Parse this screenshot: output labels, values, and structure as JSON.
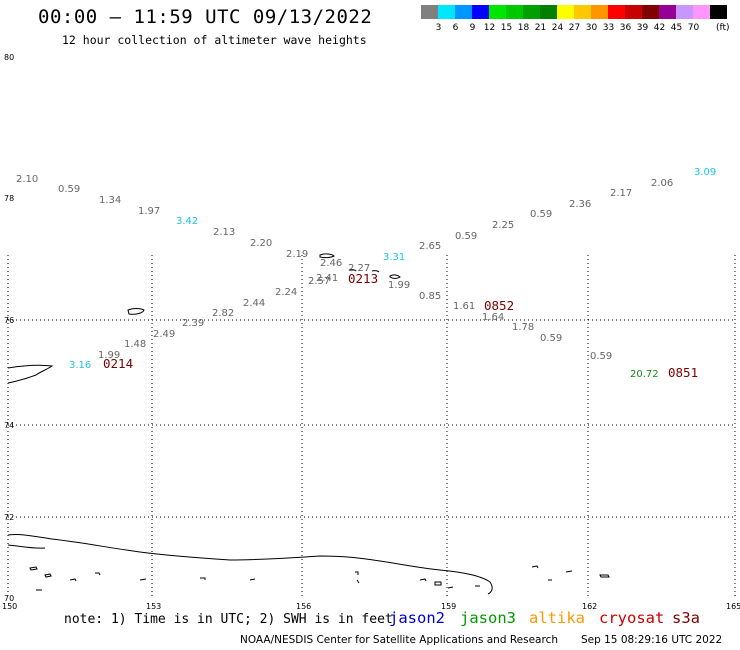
{
  "header": {
    "title": "00:00 – 11:59 UTC 09/13/2022",
    "subtitle": "12 hour collection of altimeter wave heights"
  },
  "color_scale": {
    "unit": "(ft)",
    "bins": [
      {
        "label": "",
        "color": "#808080"
      },
      {
        "label": "3",
        "color": "#00e6ff"
      },
      {
        "label": "6",
        "color": "#0096ff"
      },
      {
        "label": "9",
        "color": "#0000ff"
      },
      {
        "label": "12",
        "color": "#00e600"
      },
      {
        "label": "15",
        "color": "#00c800"
      },
      {
        "label": "18",
        "color": "#00a000"
      },
      {
        "label": "21",
        "color": "#008000"
      },
      {
        "label": "24",
        "color": "#ffff00"
      },
      {
        "label": "27",
        "color": "#ffc800"
      },
      {
        "label": "30",
        "color": "#ff9600"
      },
      {
        "label": "33",
        "color": "#ff0000"
      },
      {
        "label": "36",
        "color": "#c80000"
      },
      {
        "label": "39",
        "color": "#800000"
      },
      {
        "label": "42",
        "color": "#960096"
      },
      {
        "label": "45",
        "color": "#c896ff"
      },
      {
        "label": "70",
        "color": "#ff96ff"
      },
      {
        "label": "",
        "color": "#000000"
      }
    ]
  },
  "axes": {
    "lat_labels": [
      "80",
      "78",
      "76",
      "74",
      "72",
      "70"
    ],
    "lon_labels": [
      "150",
      "153",
      "156",
      "159",
      "162",
      "165"
    ]
  },
  "wave_heights": [
    {
      "value": "2.10",
      "color": "gray"
    },
    {
      "value": "0.59",
      "color": "gray"
    },
    {
      "value": "1.34",
      "color": "gray"
    },
    {
      "value": "1.97",
      "color": "gray"
    },
    {
      "value": "3.42",
      "color": "cyan"
    },
    {
      "value": "2.13",
      "color": "gray"
    },
    {
      "value": "2.20",
      "color": "gray"
    },
    {
      "value": "2.19",
      "color": "gray"
    },
    {
      "value": "2.46",
      "color": "gray"
    },
    {
      "value": "2.27",
      "color": "gray"
    },
    {
      "value": "3.31",
      "color": "cyan"
    },
    {
      "value": "2.65",
      "color": "gray"
    },
    {
      "value": "0.59",
      "color": "gray"
    },
    {
      "value": "2.25",
      "color": "gray"
    },
    {
      "value": "0.59",
      "color": "gray"
    },
    {
      "value": "2.36",
      "color": "gray"
    },
    {
      "value": "2.17",
      "color": "gray"
    },
    {
      "value": "2.06",
      "color": "gray"
    },
    {
      "value": "3.09",
      "color": "cyan"
    },
    {
      "value": "2.41",
      "color": "gray"
    },
    {
      "value": "2.57",
      "color": "gray"
    },
    {
      "value": "1.99",
      "color": "gray"
    },
    {
      "value": "2.24",
      "color": "gray"
    },
    {
      "value": "0.85",
      "color": "gray"
    },
    {
      "value": "2.44",
      "color": "gray"
    },
    {
      "value": "1.61",
      "color": "gray"
    },
    {
      "value": "1.64",
      "color": "gray"
    },
    {
      "value": "2.82",
      "color": "gray"
    },
    {
      "value": "1.78",
      "color": "gray"
    },
    {
      "value": "2.39",
      "color": "gray"
    },
    {
      "value": "2.49",
      "color": "gray"
    },
    {
      "value": "0.59",
      "color": "gray"
    },
    {
      "value": "1.48",
      "color": "gray"
    },
    {
      "value": "1.99",
      "color": "gray"
    },
    {
      "value": "3.16",
      "color": "cyan"
    },
    {
      "value": "0.59",
      "color": "gray"
    },
    {
      "value": "20.72",
      "color": "green"
    }
  ],
  "pass_times": [
    "0213",
    "0214",
    "0852",
    "0851"
  ],
  "footer": {
    "note": "note: 1) Time is in UTC; 2) SWH is in feet",
    "satellites": [
      {
        "name": "jason2",
        "color": "#0000cc"
      },
      {
        "name": "jason3",
        "color": "#009900"
      },
      {
        "name": "altika",
        "color": "#ff9900"
      },
      {
        "name": "cryosat",
        "color": "#cc0000"
      },
      {
        "name": "s3a",
        "color": "#7a0000"
      }
    ],
    "credit": "NOAA/NESDIS Center for Satellite Applications and Research",
    "timestamp": "Sep 15 08:29:16 UTC 2022"
  }
}
